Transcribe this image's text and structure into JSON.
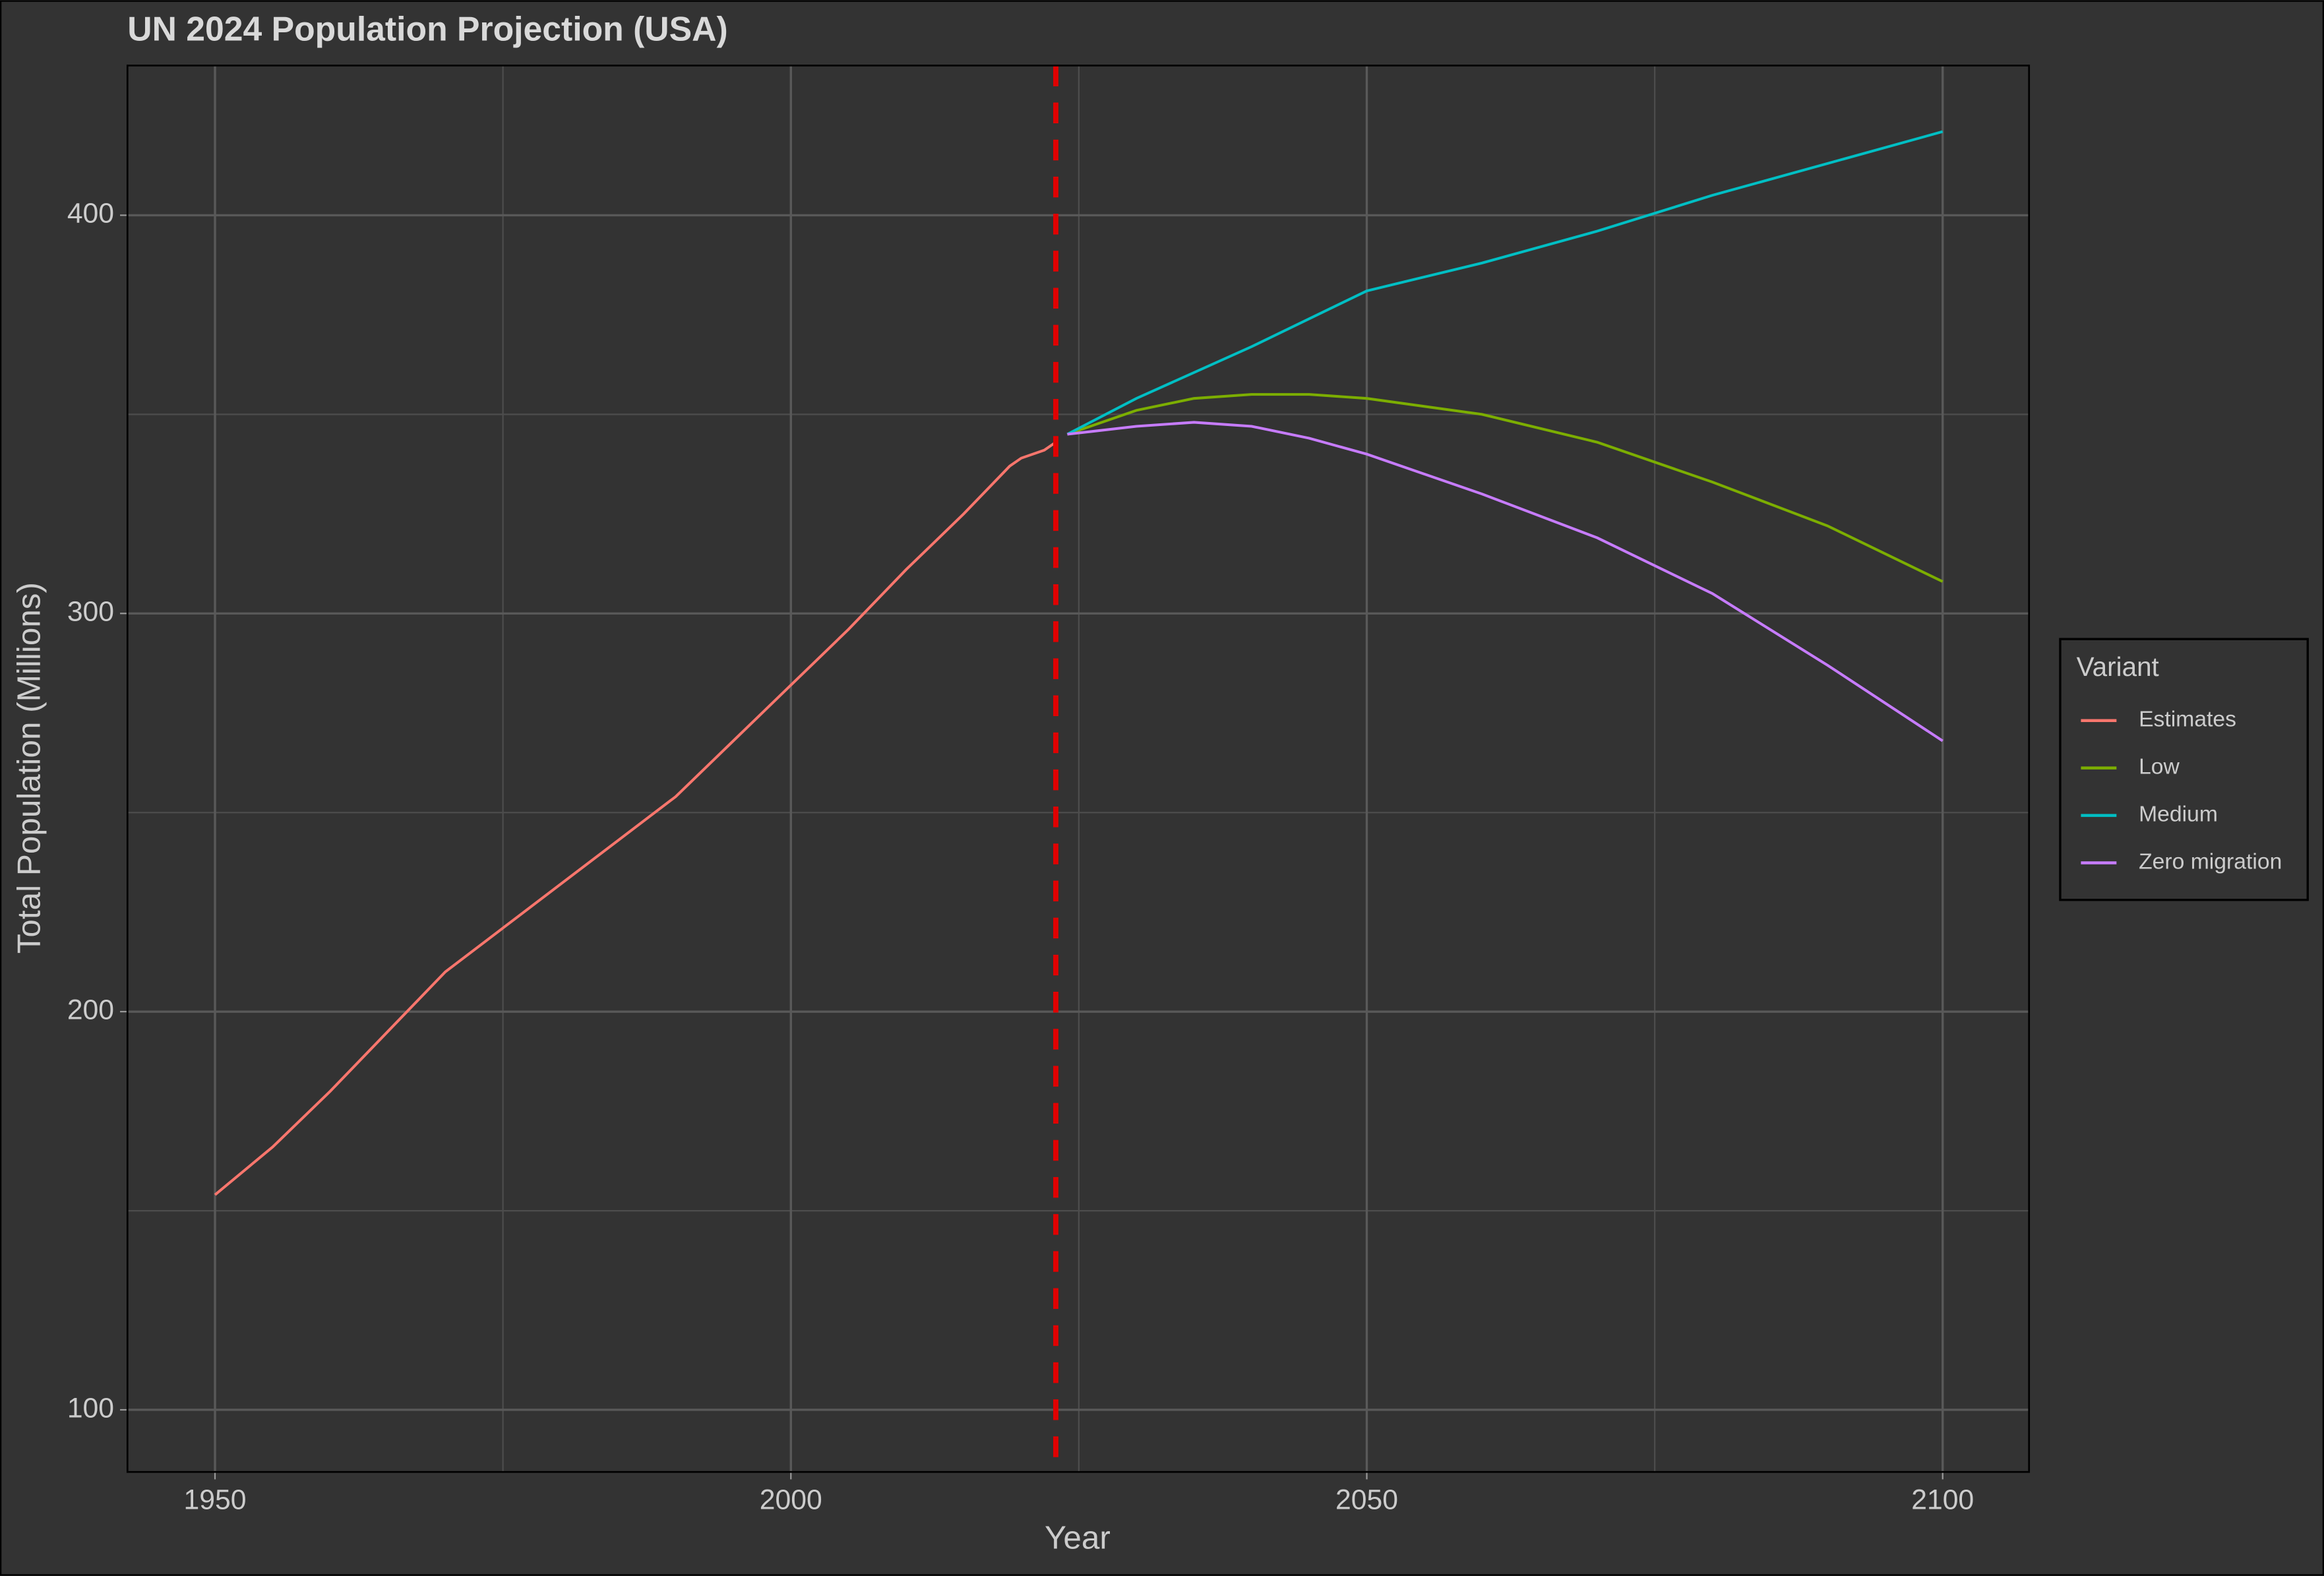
{
  "chart_data": {
    "type": "line",
    "title": "UN 2024 Population Projection (USA)",
    "x_label": "Year",
    "y_label": "Total Population (Millions)",
    "legend_title": "Variant",
    "legend_position": "right",
    "grid": true,
    "xlim": [
      1942.4,
      2107.5
    ],
    "ylim": [
      84.4,
      437.6
    ],
    "xticks": [
      1950,
      2000,
      2050,
      2100
    ],
    "x_minor_ticks": [
      1975,
      2025,
      2075
    ],
    "yticks": [
      100,
      200,
      300,
      400
    ],
    "y_minor_ticks": [
      150,
      250,
      350
    ],
    "vline": {
      "x": 2023,
      "color": "#e00000"
    },
    "series": [
      {
        "name": "Estimates",
        "color": "#F8766D",
        "x": [
          1950,
          1955,
          1960,
          1965,
          1970,
          1975,
          1980,
          1985,
          1990,
          1995,
          2000,
          2005,
          2010,
          2015,
          2019,
          2020,
          2022,
          2023
        ],
        "values": [
          154,
          166,
          180,
          195,
          210,
          221,
          232,
          243,
          254,
          268,
          282,
          296,
          311,
          325,
          337,
          339,
          341,
          343
        ]
      },
      {
        "name": "Low",
        "color": "#7CAE00",
        "x": [
          2024,
          2030,
          2035,
          2040,
          2045,
          2050,
          2060,
          2070,
          2080,
          2090,
          2100
        ],
        "values": [
          345,
          351,
          354,
          355,
          355,
          354,
          350,
          343,
          333,
          322,
          308
        ]
      },
      {
        "name": "Medium",
        "color": "#00BFC4",
        "x": [
          2024,
          2030,
          2040,
          2050,
          2060,
          2070,
          2080,
          2090,
          2100
        ],
        "values": [
          345,
          354,
          367,
          381,
          388,
          396,
          405,
          413,
          421
        ]
      },
      {
        "name": "Zero migration",
        "color": "#C77CFF",
        "x": [
          2024,
          2030,
          2035,
          2040,
          2045,
          2050,
          2060,
          2070,
          2080,
          2090,
          2100
        ],
        "values": [
          345,
          347,
          348,
          347,
          344,
          340,
          330,
          319,
          305,
          287,
          268
        ]
      }
    ]
  }
}
